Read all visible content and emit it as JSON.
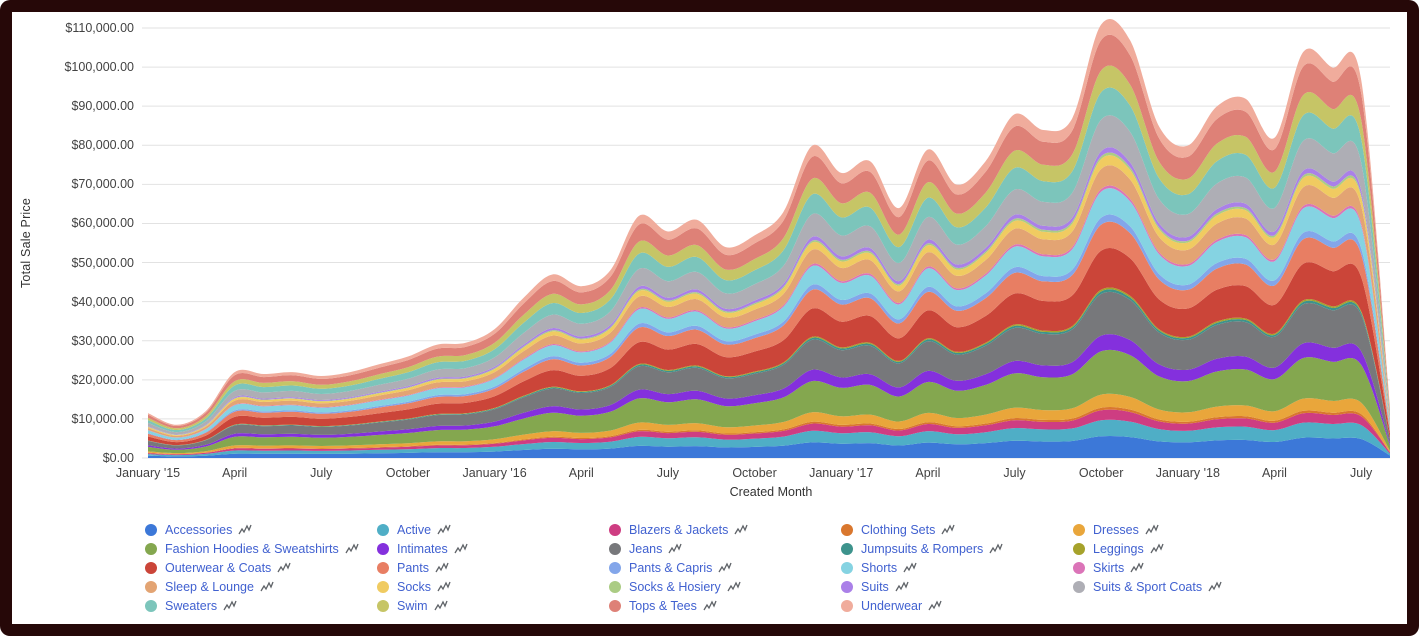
{
  "frame": {
    "border_color": "#260808",
    "card_background": "#ffffff"
  },
  "icons": {
    "legend_item_icon": "trend-sparkline-icon"
  },
  "legend": {
    "text_color": "#4161D0",
    "icon_color": "#5F6368",
    "columns": 5
  },
  "chart_data": {
    "type": "area",
    "stacked": true,
    "title": "",
    "xlabel": "Created Month",
    "ylabel": "Total Sale Price",
    "ylim": [
      0,
      110000
    ],
    "grid": {
      "horizontal": true,
      "vertical": false,
      "color": "#E2E2E2"
    },
    "legend_position": "bottom",
    "y_tick_labels": [
      "$110,000.00",
      "$100,000.00",
      "$90,000.00",
      "$80,000.00",
      "$70,000.00",
      "$60,000.00",
      "$50,000.00",
      "$40,000.00",
      "$30,000.00",
      "$20,000.00",
      "$10,000.00",
      "$0.00"
    ],
    "x_tick_labels": [
      "January '15",
      "April",
      "July",
      "October",
      "January '16",
      "April",
      "July",
      "October",
      "January '17",
      "April",
      "July",
      "October",
      "January '18",
      "April",
      "July"
    ],
    "x_ticks_every_n_months": 3,
    "months": [
      "2015-01",
      "2015-02",
      "2015-03",
      "2015-04",
      "2015-05",
      "2015-06",
      "2015-07",
      "2015-08",
      "2015-09",
      "2015-10",
      "2015-11",
      "2015-12",
      "2016-01",
      "2016-02",
      "2016-03",
      "2016-04",
      "2016-05",
      "2016-06",
      "2016-07",
      "2016-08",
      "2016-09",
      "2016-10",
      "2016-11",
      "2016-12",
      "2017-01",
      "2017-02",
      "2017-03",
      "2017-04",
      "2017-05",
      "2017-06",
      "2017-07",
      "2017-08",
      "2017-09",
      "2017-10",
      "2017-11",
      "2017-12",
      "2018-01",
      "2018-02",
      "2018-03",
      "2018-04",
      "2018-05",
      "2018-06",
      "2018-07",
      "2018-08"
    ],
    "totals_usd": [
      11500,
      8500,
      12000,
      22000,
      21500,
      22000,
      21000,
      22000,
      24000,
      26000,
      29000,
      29500,
      33000,
      41000,
      47000,
      44000,
      48000,
      62000,
      58000,
      61000,
      54000,
      57000,
      63000,
      80000,
      73000,
      76000,
      64000,
      79000,
      70000,
      76000,
      88000,
      84000,
      87000,
      111000,
      107000,
      85000,
      80000,
      90000,
      92000,
      82000,
      104000,
      100000,
      97000,
      13000
    ],
    "series_note": "stacked bottom-to-top in listed order; monthly value = share_of_total x totals_usd for that month (values estimated from pixels)",
    "series": [
      {
        "name": "Accessories",
        "color": "#3C78D8",
        "share_of_total": 0.05
      },
      {
        "name": "Active",
        "color": "#4FAEC6",
        "share_of_total": 0.037
      },
      {
        "name": "Blazers & Jackets",
        "color": "#CE3D82",
        "share_of_total": 0.023
      },
      {
        "name": "Clothing Sets",
        "color": "#D9772E",
        "share_of_total": 0.006
      },
      {
        "name": "Dresses",
        "color": "#E9A63B",
        "share_of_total": 0.03
      },
      {
        "name": "Fashion Hoodies & Sweatshirts",
        "color": "#84A74F",
        "share_of_total": 0.1
      },
      {
        "name": "Intimates",
        "color": "#8430DD",
        "share_of_total": 0.036
      },
      {
        "name": "Jeans",
        "color": "#77787B",
        "share_of_total": 0.096
      },
      {
        "name": "Jumpsuits & Rompers",
        "color": "#3D938C",
        "share_of_total": 0.006
      },
      {
        "name": "Leggings",
        "color": "#A6A22B",
        "share_of_total": 0.004
      },
      {
        "name": "Outerwear & Coats",
        "color": "#CB4539",
        "share_of_total": 0.09
      },
      {
        "name": "Pants",
        "color": "#E87E63",
        "share_of_total": 0.06
      },
      {
        "name": "Pants & Capris",
        "color": "#83A6EA",
        "share_of_total": 0.016
      },
      {
        "name": "Shorts",
        "color": "#85D3E2",
        "share_of_total": 0.06
      },
      {
        "name": "Skirts",
        "color": "#DB74B8",
        "share_of_total": 0.006
      },
      {
        "name": "Sleep & Lounge",
        "color": "#E3A473",
        "share_of_total": 0.046
      },
      {
        "name": "Socks",
        "color": "#F0CB61",
        "share_of_total": 0.023
      },
      {
        "name": "Socks & Hosiery",
        "color": "#ABCC84",
        "share_of_total": 0.006
      },
      {
        "name": "Suits",
        "color": "#AA80E8",
        "share_of_total": 0.012
      },
      {
        "name": "Suits & Sport Coats",
        "color": "#AEAEB5",
        "share_of_total": 0.073
      },
      {
        "name": "Sweaters",
        "color": "#7CC5BB",
        "share_of_total": 0.063
      },
      {
        "name": "Swim",
        "color": "#C6C566",
        "share_of_total": 0.05
      },
      {
        "name": "Tops & Tees",
        "color": "#DE8177",
        "share_of_total": 0.07
      },
      {
        "name": "Underwear",
        "color": "#F0AC9C",
        "share_of_total": 0.036
      }
    ]
  }
}
